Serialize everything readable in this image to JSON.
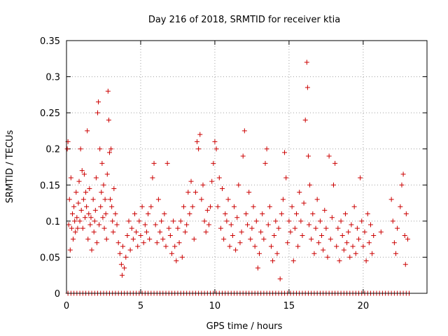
{
  "chart_data": {
    "type": "scatter",
    "title": "Day 216 of 2018, SRMTID for receiver ktia",
    "xlabel": "GPS time / hours",
    "ylabel": "SRMTID / TECUs",
    "xlim": [
      0,
      24.3
    ],
    "ylim": [
      0,
      0.35
    ],
    "xticks": [
      0,
      5,
      10,
      15,
      20
    ],
    "xtick_labels": [
      "0",
      "5",
      "10",
      "15",
      "20"
    ],
    "yticks": [
      0,
      0.05,
      0.1,
      0.15,
      0.2,
      0.25,
      0.3,
      0.35
    ],
    "ytick_labels": [
      "0",
      "0.05",
      "0.1",
      "0.15",
      "0.2",
      "0.25",
      "0.3",
      "0.35"
    ],
    "grid": true,
    "marker": "+",
    "color": "#cc0000",
    "series": [
      {
        "name": "SRMTID",
        "points": [
          [
            0.05,
            0.2
          ],
          [
            0.1,
            0.21
          ],
          [
            0.15,
            0.095
          ],
          [
            0.2,
            0.13
          ],
          [
            0.25,
            0.06
          ],
          [
            0.3,
            0.16
          ],
          [
            0.35,
            0.09
          ],
          [
            0.4,
            0.11
          ],
          [
            0.45,
            0.075
          ],
          [
            0.5,
            0.12
          ],
          [
            0.55,
            0.1
          ],
          [
            0.6,
            0.085
          ],
          [
            0.65,
            0.14
          ],
          [
            0.7,
            0.105
          ],
          [
            0.75,
            0.09
          ],
          [
            0.8,
            0.125
          ],
          [
            0.85,
            0.155
          ],
          [
            0.9,
            0.1
          ],
          [
            0.95,
            0.2
          ],
          [
            1.0,
            0.115
          ],
          [
            1.05,
            0.17
          ],
          [
            1.1,
            0.09
          ],
          [
            1.15,
            0.13
          ],
          [
            1.2,
            0.165
          ],
          [
            1.25,
            0.105
          ],
          [
            1.3,
            0.14
          ],
          [
            1.35,
            0.12
          ],
          [
            1.4,
            0.225
          ],
          [
            1.45,
            0.075
          ],
          [
            1.5,
            0.11
          ],
          [
            1.55,
            0.145
          ],
          [
            1.6,
            0.095
          ],
          [
            1.65,
            0.105
          ],
          [
            1.7,
            0.06
          ],
          [
            1.8,
            0.13
          ],
          [
            1.85,
            0.085
          ],
          [
            1.9,
            0.1
          ],
          [
            1.95,
            0.115
          ],
          [
            2.0,
            0.16
          ],
          [
            2.05,
            0.07
          ],
          [
            2.1,
            0.25
          ],
          [
            2.15,
            0.265
          ],
          [
            2.2,
            0.095
          ],
          [
            2.25,
            0.2
          ],
          [
            2.3,
            0.12
          ],
          [
            2.35,
            0.14
          ],
          [
            2.4,
            0.18
          ],
          [
            2.45,
            0.105
          ],
          [
            2.5,
            0.15
          ],
          [
            2.55,
            0.09
          ],
          [
            2.6,
            0.13
          ],
          [
            2.65,
            0.11
          ],
          [
            2.7,
            0.075
          ],
          [
            2.75,
            0.165
          ],
          [
            2.8,
            0.28
          ],
          [
            2.85,
            0.24
          ],
          [
            2.9,
            0.195
          ],
          [
            2.95,
            0.13
          ],
          [
            3.0,
            0.2
          ],
          [
            3.05,
            0.12
          ],
          [
            3.1,
            0.1
          ],
          [
            3.15,
            0.085
          ],
          [
            3.2,
            0.145
          ],
          [
            3.3,
            0.11
          ],
          [
            3.4,
            0.095
          ],
          [
            3.5,
            0.07
          ],
          [
            3.6,
            0.055
          ],
          [
            3.7,
            0.04
          ],
          [
            3.75,
            0.025
          ],
          [
            3.8,
            0.065
          ],
          [
            3.9,
            0.035
          ],
          [
            4.0,
            0.05
          ],
          [
            4.1,
            0.08
          ],
          [
            4.2,
            0.1
          ],
          [
            4.3,
            0.06
          ],
          [
            4.4,
            0.09
          ],
          [
            4.5,
            0.075
          ],
          [
            4.6,
            0.11
          ],
          [
            4.7,
            0.085
          ],
          [
            4.8,
            0.065
          ],
          [
            4.9,
            0.1
          ],
          [
            5.0,
            0.08
          ],
          [
            5.1,
            0.12
          ],
          [
            5.2,
            0.07
          ],
          [
            5.3,
            0.095
          ],
          [
            5.4,
            0.085
          ],
          [
            5.5,
            0.11
          ],
          [
            5.6,
            0.075
          ],
          [
            5.7,
            0.12
          ],
          [
            5.8,
            0.16
          ],
          [
            5.9,
            0.18
          ],
          [
            6.0,
            0.095
          ],
          [
            6.1,
            0.07
          ],
          [
            6.2,
            0.13
          ],
          [
            6.3,
            0.085
          ],
          [
            6.4,
            0.1
          ],
          [
            6.5,
            0.075
          ],
          [
            6.6,
            0.11
          ],
          [
            6.7,
            0.065
          ],
          [
            6.8,
            0.18
          ],
          [
            6.9,
            0.09
          ],
          [
            7.0,
            0.08
          ],
          [
            7.1,
            0.055
          ],
          [
            7.2,
            0.1
          ],
          [
            7.3,
            0.065
          ],
          [
            7.4,
            0.045
          ],
          [
            7.5,
            0.09
          ],
          [
            7.6,
            0.07
          ],
          [
            7.7,
            0.1
          ],
          [
            7.8,
            0.05
          ],
          [
            7.9,
            0.12
          ],
          [
            8.0,
            0.085
          ],
          [
            8.1,
            0.095
          ],
          [
            8.2,
            0.14
          ],
          [
            8.3,
            0.11
          ],
          [
            8.4,
            0.155
          ],
          [
            8.5,
            0.12
          ],
          [
            8.6,
            0.075
          ],
          [
            8.7,
            0.14
          ],
          [
            8.8,
            0.21
          ],
          [
            8.9,
            0.2
          ],
          [
            9.0,
            0.22
          ],
          [
            9.1,
            0.13
          ],
          [
            9.2,
            0.15
          ],
          [
            9.3,
            0.1
          ],
          [
            9.4,
            0.085
          ],
          [
            9.5,
            0.115
          ],
          [
            9.6,
            0.095
          ],
          [
            9.7,
            0.12
          ],
          [
            9.8,
            0.155
          ],
          [
            9.9,
            0.18
          ],
          [
            10.0,
            0.21
          ],
          [
            10.1,
            0.2
          ],
          [
            10.2,
            0.12
          ],
          [
            10.3,
            0.16
          ],
          [
            10.4,
            0.09
          ],
          [
            10.5,
            0.145
          ],
          [
            10.6,
            0.075
          ],
          [
            10.7,
            0.11
          ],
          [
            10.8,
            0.1
          ],
          [
            10.9,
            0.13
          ],
          [
            11.0,
            0.065
          ],
          [
            11.1,
            0.095
          ],
          [
            11.2,
            0.08
          ],
          [
            11.3,
            0.12
          ],
          [
            11.4,
            0.06
          ],
          [
            11.5,
            0.105
          ],
          [
            11.6,
            0.15
          ],
          [
            11.7,
            0.07
          ],
          [
            11.8,
            0.085
          ],
          [
            11.9,
            0.19
          ],
          [
            12.0,
            0.225
          ],
          [
            12.1,
            0.11
          ],
          [
            12.2,
            0.095
          ],
          [
            12.3,
            0.14
          ],
          [
            12.4,
            0.075
          ],
          [
            12.5,
            0.09
          ],
          [
            12.6,
            0.12
          ],
          [
            12.7,
            0.065
          ],
          [
            12.8,
            0.1
          ],
          [
            12.9,
            0.035
          ],
          [
            13.0,
            0.055
          ],
          [
            13.1,
            0.085
          ],
          [
            13.2,
            0.11
          ],
          [
            13.3,
            0.075
          ],
          [
            13.4,
            0.18
          ],
          [
            13.5,
            0.2
          ],
          [
            13.6,
            0.095
          ],
          [
            13.7,
            0.12
          ],
          [
            13.8,
            0.065
          ],
          [
            13.9,
            0.045
          ],
          [
            14.0,
            0.08
          ],
          [
            14.1,
            0.1
          ],
          [
            14.2,
            0.055
          ],
          [
            14.3,
            0.09
          ],
          [
            14.4,
            0.02
          ],
          [
            14.5,
            0.11
          ],
          [
            14.6,
            0.13
          ],
          [
            14.7,
            0.195
          ],
          [
            14.8,
            0.16
          ],
          [
            14.9,
            0.07
          ],
          [
            15.0,
            0.1
          ],
          [
            15.1,
            0.085
          ],
          [
            15.2,
            0.12
          ],
          [
            15.3,
            0.045
          ],
          [
            15.4,
            0.09
          ],
          [
            15.5,
            0.11
          ],
          [
            15.6,
            0.065
          ],
          [
            15.7,
            0.14
          ],
          [
            15.8,
            0.1
          ],
          [
            15.9,
            0.08
          ],
          [
            16.0,
            0.125
          ],
          [
            16.1,
            0.24
          ],
          [
            16.2,
            0.32
          ],
          [
            16.25,
            0.285
          ],
          [
            16.3,
            0.19
          ],
          [
            16.35,
            0.095
          ],
          [
            16.4,
            0.15
          ],
          [
            16.5,
            0.075
          ],
          [
            16.6,
            0.11
          ],
          [
            16.7,
            0.055
          ],
          [
            16.8,
            0.09
          ],
          [
            16.9,
            0.13
          ],
          [
            17.0,
            0.07
          ],
          [
            17.1,
            0.1
          ],
          [
            17.2,
            0.08
          ],
          [
            17.3,
            0.06
          ],
          [
            17.4,
            0.115
          ],
          [
            17.5,
            0.09
          ],
          [
            17.6,
            0.05
          ],
          [
            17.7,
            0.19
          ],
          [
            17.8,
            0.075
          ],
          [
            17.9,
            0.105
          ],
          [
            18.0,
            0.15
          ],
          [
            18.1,
            0.18
          ],
          [
            18.2,
            0.065
          ],
          [
            18.3,
            0.09
          ],
          [
            18.4,
            0.045
          ],
          [
            18.5,
            0.1
          ],
          [
            18.6,
            0.08
          ],
          [
            18.7,
            0.06
          ],
          [
            18.8,
            0.11
          ],
          [
            18.9,
            0.07
          ],
          [
            19.0,
            0.085
          ],
          [
            19.1,
            0.05
          ],
          [
            19.2,
            0.095
          ],
          [
            19.3,
            0.065
          ],
          [
            19.4,
            0.12
          ],
          [
            19.5,
            0.055
          ],
          [
            19.6,
            0.09
          ],
          [
            19.7,
            0.075
          ],
          [
            19.8,
            0.16
          ],
          [
            19.9,
            0.1
          ],
          [
            20.0,
            0.065
          ],
          [
            20.1,
            0.085
          ],
          [
            20.2,
            0.045
          ],
          [
            20.3,
            0.11
          ],
          [
            20.4,
            0.07
          ],
          [
            20.5,
            0.095
          ],
          [
            20.6,
            0.055
          ],
          [
            20.7,
            0.08
          ],
          [
            21.2,
            0.085
          ],
          [
            21.9,
            0.13
          ],
          [
            22.0,
            0.1
          ],
          [
            22.1,
            0.07
          ],
          [
            22.2,
            0.055
          ],
          [
            22.3,
            0.09
          ],
          [
            22.5,
            0.12
          ],
          [
            22.6,
            0.15
          ],
          [
            22.7,
            0.165
          ],
          [
            22.8,
            0.08
          ],
          [
            22.9,
            0.11
          ],
          [
            23.0,
            0.075
          ],
          [
            22.85,
            0.04
          ]
        ],
        "zero_points_x": [
          0.1,
          0.3,
          0.5,
          0.7,
          0.9,
          1.1,
          1.3,
          1.5,
          1.7,
          1.9,
          2.1,
          2.3,
          2.5,
          2.7,
          2.9,
          3.1,
          3.3,
          3.5,
          3.7,
          3.9,
          4.1,
          4.3,
          4.5,
          4.7,
          4.9,
          5.1,
          5.3,
          5.5,
          5.7,
          5.9,
          6.1,
          6.3,
          6.5,
          6.7,
          6.9,
          7.1,
          7.3,
          7.5,
          7.7,
          7.9,
          8.1,
          8.3,
          8.5,
          8.7,
          8.9,
          9.1,
          9.3,
          9.5,
          9.7,
          9.9,
          10.1,
          10.3,
          10.5,
          10.7,
          10.9,
          11.1,
          11.3,
          11.5,
          11.7,
          11.9,
          12.1,
          12.3,
          12.5,
          12.7,
          12.9,
          13.1,
          13.3,
          13.5,
          13.7,
          13.9,
          14.1,
          14.3,
          14.5,
          14.7,
          14.9,
          15.1,
          15.3,
          15.5,
          15.7,
          15.9,
          16.1,
          16.3,
          16.5,
          16.7,
          16.9,
          17.1,
          17.3,
          17.5,
          17.7,
          17.9,
          18.1,
          18.3,
          18.5,
          18.7,
          18.9,
          19.1,
          19.3,
          19.5,
          19.7,
          19.9,
          20.1,
          20.3,
          20.5,
          20.7,
          20.9,
          21.1,
          21.3,
          21.5,
          21.7,
          21.9,
          22.1,
          22.3,
          22.5,
          22.7,
          22.9,
          23.1
        ]
      }
    ]
  }
}
